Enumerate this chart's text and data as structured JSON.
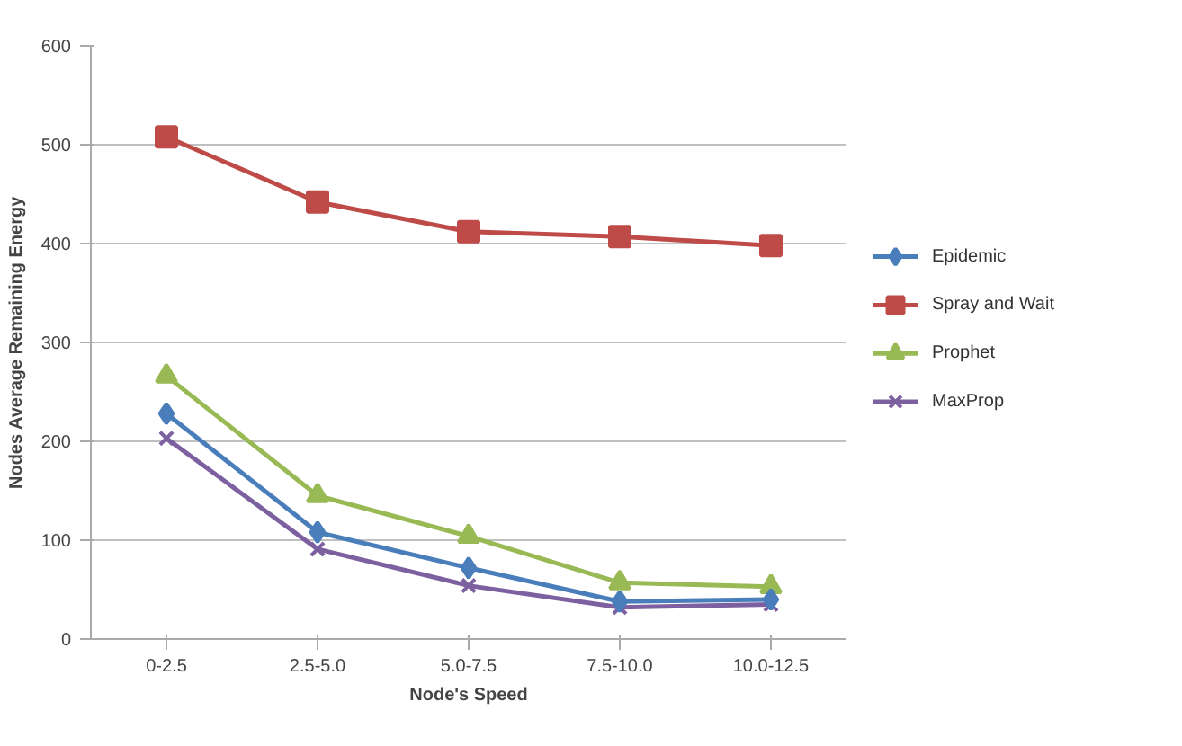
{
  "chart_data": {
    "type": "line",
    "xlabel": "Node's Speed",
    "ylabel": "Nodes Average Remaining Energy",
    "categories": [
      "0-2.5",
      "2.5-5.0",
      "5.0-7.5",
      "7.5-10.0",
      "10.0-12.5"
    ],
    "ylim": [
      0,
      600
    ],
    "yticks": [
      0,
      100,
      200,
      300,
      400,
      500,
      600
    ],
    "grid": "y",
    "legend": "right",
    "series": [
      {
        "name": "Epidemic",
        "color": "#4a7ebb",
        "marker": "diamond",
        "values": [
          228,
          108,
          72,
          38,
          40
        ]
      },
      {
        "name": "Spray and Wait",
        "color": "#be4b48",
        "marker": "square",
        "values": [
          508,
          442,
          412,
          407,
          398
        ]
      },
      {
        "name": "Prophet",
        "color": "#98b954",
        "marker": "triangle",
        "values": [
          266,
          145,
          104,
          57,
          53
        ]
      },
      {
        "name": "MaxProp",
        "color": "#7d60a0",
        "marker": "x",
        "values": [
          203,
          91,
          54,
          32,
          35
        ]
      }
    ]
  }
}
